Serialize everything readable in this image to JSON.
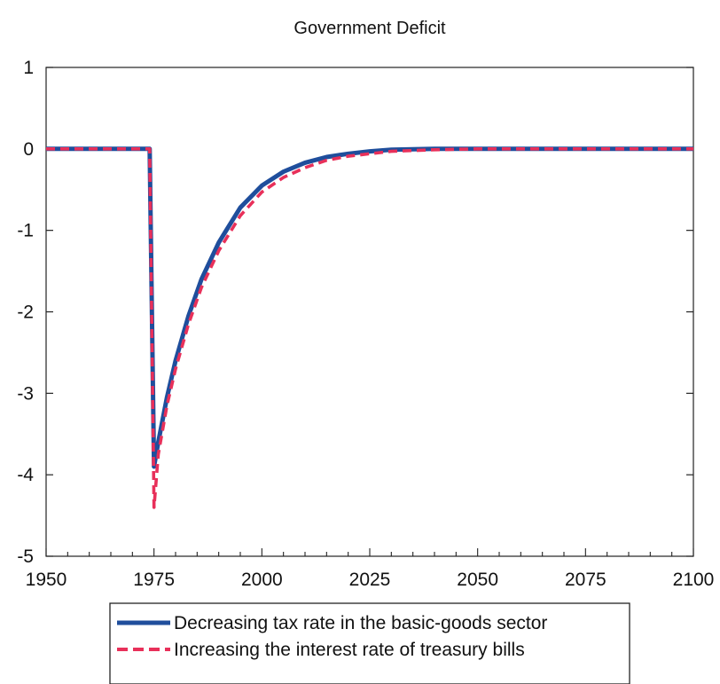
{
  "chart_data": {
    "type": "line",
    "title": "Government Deficit",
    "xlabel": "",
    "ylabel": "",
    "xlim": [
      1950,
      2100
    ],
    "ylim": [
      -5,
      1
    ],
    "x_ticks": [
      1950,
      1975,
      2000,
      2025,
      2050,
      2075,
      2100
    ],
    "y_ticks": [
      1,
      0,
      -1,
      -2,
      -3,
      -4,
      -5
    ],
    "grid": false,
    "legend_position": "bottom",
    "series": [
      {
        "name": "Decreasing tax rate in the basic-goods sector",
        "color": "#1f4e9c",
        "style": "solid",
        "x": [
          1950,
          1960,
          1970,
          1974,
          1975,
          1976,
          1978,
          1980,
          1983,
          1986,
          1990,
          1995,
          2000,
          2005,
          2010,
          2015,
          2020,
          2025,
          2030,
          2040,
          2050,
          2060,
          2075,
          2090,
          2100
        ],
        "y": [
          0,
          0,
          0,
          0,
          -3.9,
          -3.6,
          -3.05,
          -2.6,
          -2.05,
          -1.6,
          -1.15,
          -0.72,
          -0.45,
          -0.28,
          -0.17,
          -0.1,
          -0.06,
          -0.03,
          -0.01,
          0,
          0,
          0,
          0,
          0,
          0
        ]
      },
      {
        "name": "Increasing the interest rate of treasury bills",
        "color": "#e8305a",
        "style": "dashed",
        "x": [
          1950,
          1960,
          1970,
          1974,
          1975,
          1976,
          1978,
          1980,
          1983,
          1986,
          1990,
          1995,
          2000,
          2005,
          2010,
          2015,
          2020,
          2025,
          2030,
          2040,
          2050,
          2060,
          2075,
          2090,
          2100
        ],
        "y": [
          0,
          0,
          0,
          0,
          -4.4,
          -3.75,
          -3.15,
          -2.7,
          -2.15,
          -1.7,
          -1.25,
          -0.82,
          -0.53,
          -0.35,
          -0.23,
          -0.14,
          -0.09,
          -0.06,
          -0.03,
          -0.01,
          0,
          0,
          0,
          0,
          0
        ]
      }
    ]
  }
}
